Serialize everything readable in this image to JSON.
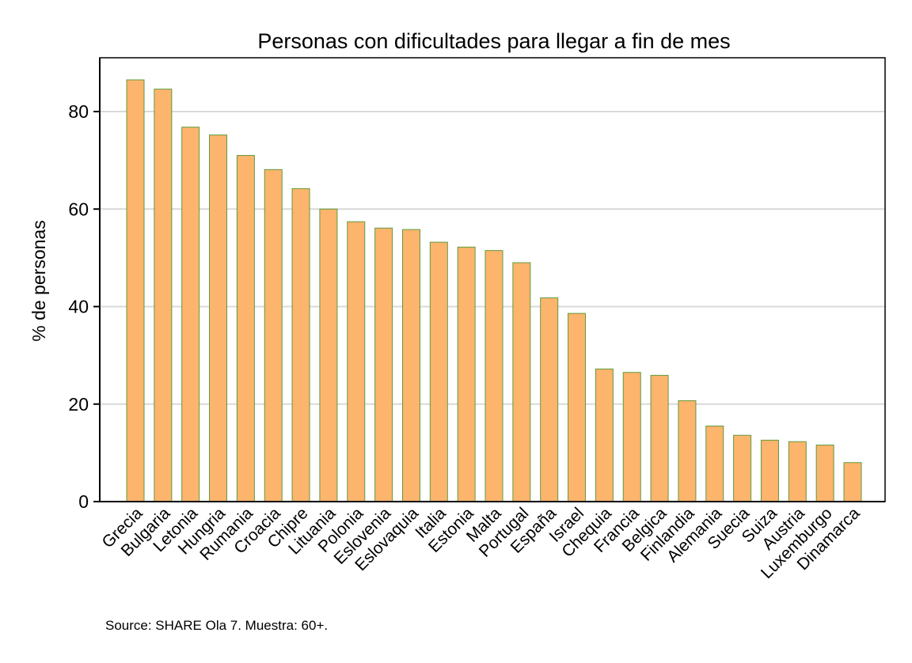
{
  "chart_data": {
    "type": "bar",
    "title": "Personas con dificultades para llegar a fin de mes",
    "xlabel": "",
    "ylabel": "% de personas",
    "ylim": [
      0,
      90
    ],
    "yticks": [
      0,
      20,
      40,
      60,
      80
    ],
    "grid": true,
    "categories": [
      "Grecia",
      "Bulgaria",
      "Letonia",
      "Hungria",
      "Rumania",
      "Croacia",
      "Chipre",
      "Lituania",
      "Polonia",
      "Eslovenia",
      "Eslovaquia",
      "Italia",
      "Estonia",
      "Malta",
      "Portugal",
      "España",
      "Israel",
      "Chequia",
      "Francia",
      "Belgica",
      "Finlandia",
      "Alemania",
      "Suecia",
      "Suiza",
      "Austria",
      "Luxemburgo",
      "Dinamarca"
    ],
    "values": [
      86.5,
      84.6,
      76.8,
      75.2,
      71.0,
      68.1,
      64.2,
      60.0,
      57.4,
      56.1,
      55.8,
      53.2,
      52.2,
      51.5,
      49.0,
      41.8,
      38.6,
      27.2,
      26.5,
      25.9,
      20.7,
      15.5,
      13.6,
      12.6,
      12.3,
      11.6,
      8.0
    ],
    "colors": {
      "bar_fill": "#FDB46C",
      "bar_stroke": "#5E9B3E",
      "grid": "#d9d9d9"
    },
    "source": "Source: SHARE Ola 7. Muestra: 60+."
  }
}
